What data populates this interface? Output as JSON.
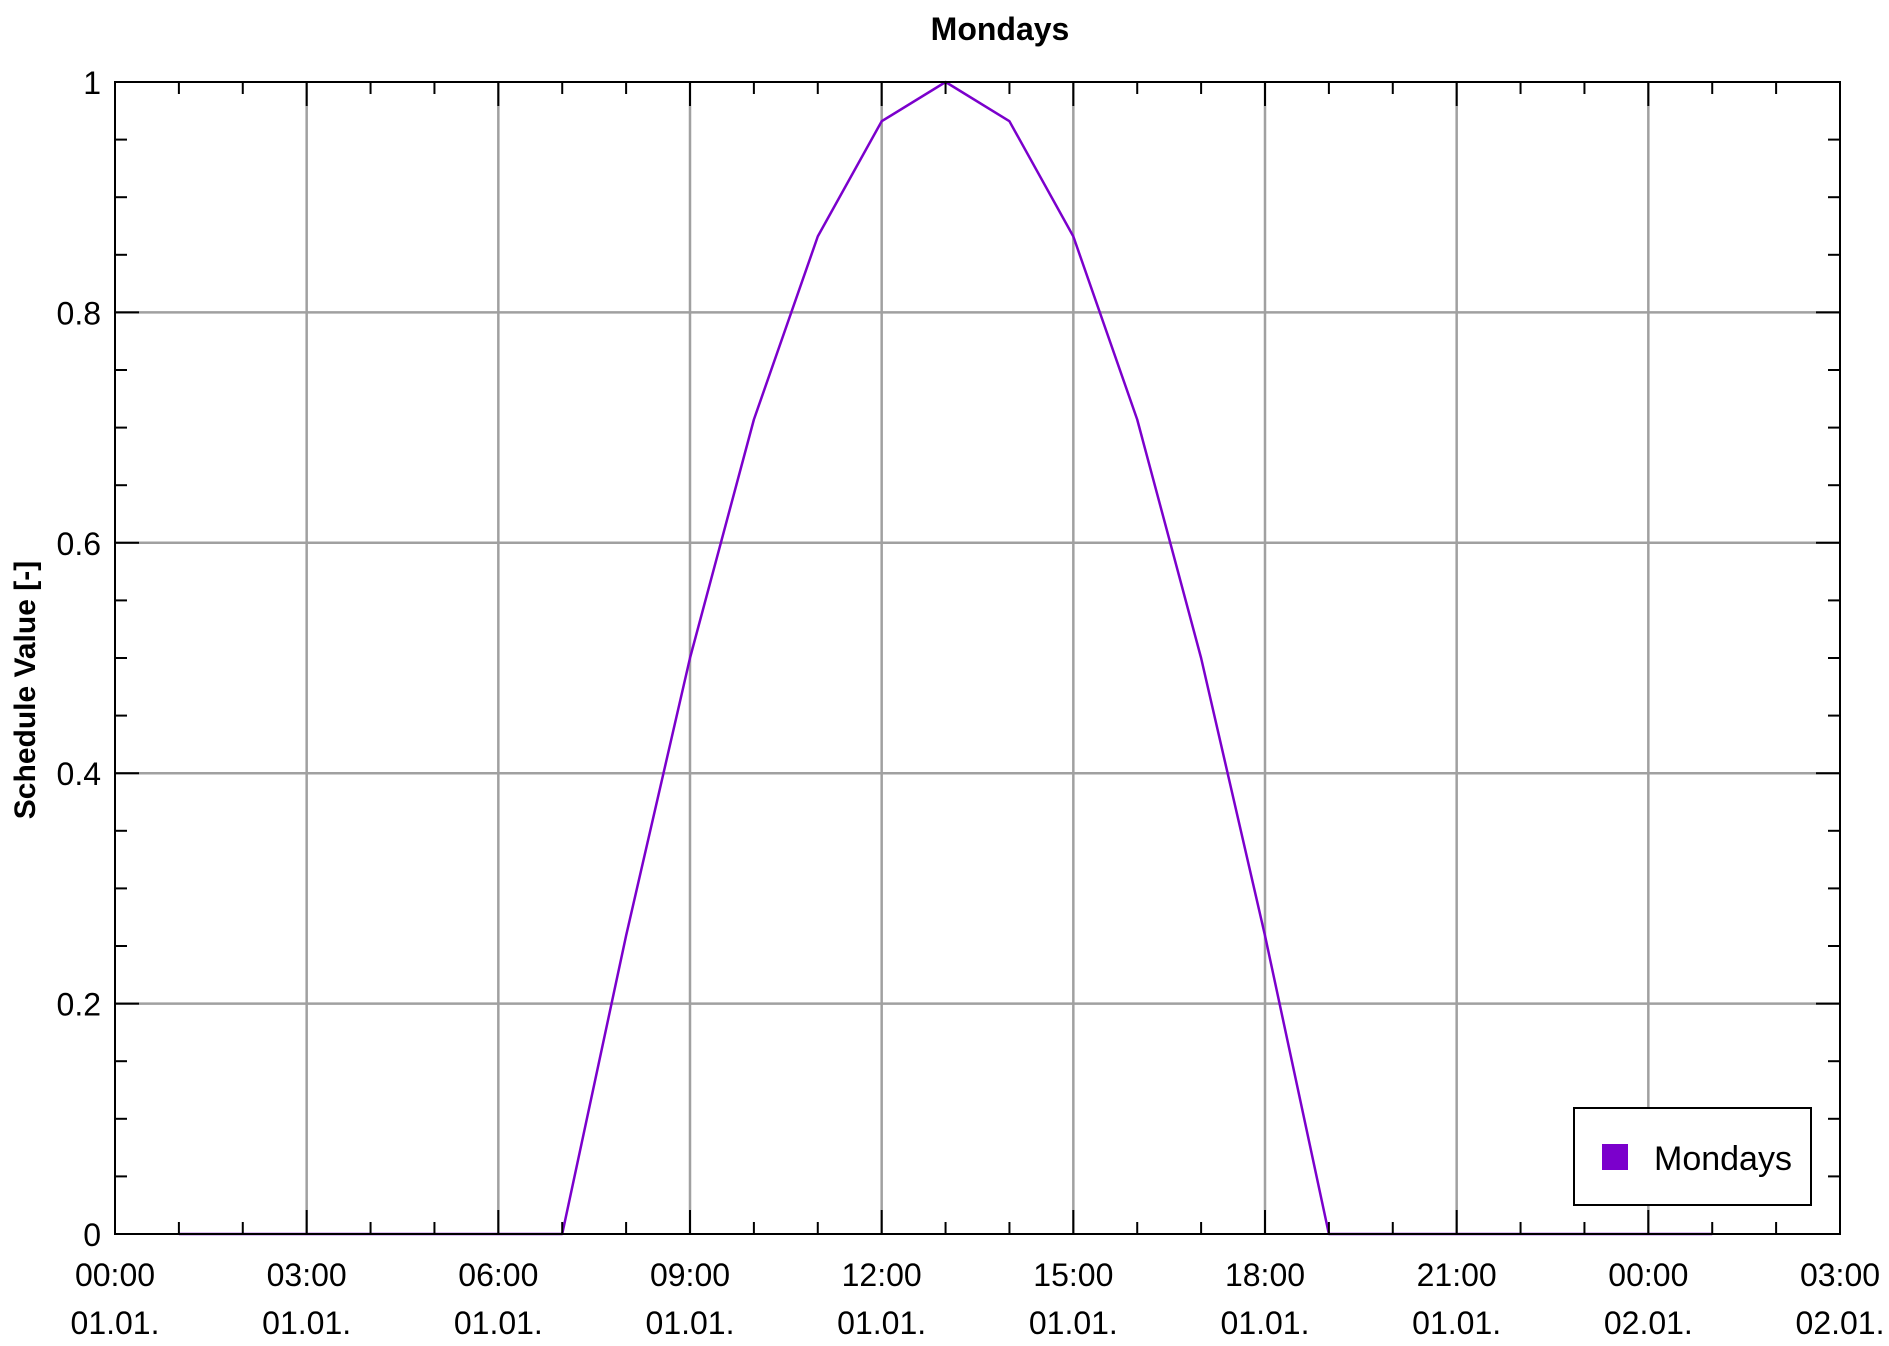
{
  "chart_data": {
    "type": "line",
    "title": "Mondays",
    "ylabel": "Schedule Value [-]",
    "xlabel": "",
    "ylim": [
      0,
      1
    ],
    "xlim": [
      0,
      27
    ],
    "x_unit": "hours",
    "grid": true,
    "legend_position": "bottom-right",
    "y_ticks": [
      {
        "value": 0,
        "label": "0"
      },
      {
        "value": 0.2,
        "label": "0.2"
      },
      {
        "value": 0.4,
        "label": "0.4"
      },
      {
        "value": 0.6,
        "label": "0.6"
      },
      {
        "value": 0.8,
        "label": "0.8"
      },
      {
        "value": 1,
        "label": "1"
      }
    ],
    "x_ticks": [
      {
        "value": 0,
        "time": "00:00",
        "date": "01.01."
      },
      {
        "value": 3,
        "time": "03:00",
        "date": "01.01."
      },
      {
        "value": 6,
        "time": "06:00",
        "date": "01.01."
      },
      {
        "value": 9,
        "time": "09:00",
        "date": "01.01."
      },
      {
        "value": 12,
        "time": "12:00",
        "date": "01.01."
      },
      {
        "value": 15,
        "time": "15:00",
        "date": "01.01."
      },
      {
        "value": 18,
        "time": "18:00",
        "date": "01.01."
      },
      {
        "value": 21,
        "time": "21:00",
        "date": "01.01."
      },
      {
        "value": 24,
        "time": "00:00",
        "date": "02.01."
      },
      {
        "value": 27,
        "time": "03:00",
        "date": "02.01."
      }
    ],
    "series": [
      {
        "name": "Mondays",
        "color": "#7B00CC",
        "x": [
          1,
          2,
          3,
          4,
          5,
          6,
          7,
          8,
          9,
          10,
          11,
          12,
          13,
          14,
          15,
          16,
          17,
          18,
          19,
          20,
          21,
          22,
          23,
          24,
          25
        ],
        "values": [
          0,
          0,
          0,
          0,
          0,
          0,
          0,
          0.259,
          0.5,
          0.707,
          0.866,
          0.966,
          1,
          0.966,
          0.866,
          0.707,
          0.5,
          0.259,
          0,
          0,
          0,
          0,
          0,
          0,
          0
        ]
      }
    ]
  }
}
